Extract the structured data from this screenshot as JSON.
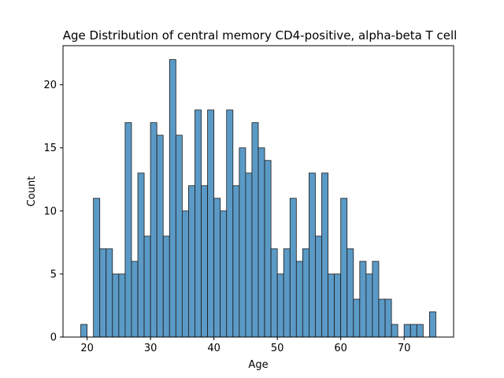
{
  "chart_data": {
    "type": "bar",
    "title": "Age Distribution of central memory CD4-positive, alpha-beta T cell",
    "xlabel": "Age",
    "ylabel": "Count",
    "xlim": [
      16.2,
      77.8
    ],
    "ylim": [
      0,
      23.1
    ],
    "x_ticks": [
      20,
      30,
      40,
      50,
      60,
      70
    ],
    "y_ticks": [
      0,
      5,
      10,
      15,
      20
    ],
    "bin_width": 1,
    "bin_starts": [
      19,
      20,
      21,
      22,
      23,
      24,
      25,
      26,
      27,
      28,
      29,
      30,
      31,
      32,
      33,
      34,
      35,
      36,
      37,
      38,
      39,
      40,
      41,
      42,
      43,
      44,
      45,
      46,
      47,
      48,
      49,
      50,
      51,
      52,
      53,
      54,
      55,
      56,
      57,
      58,
      59,
      60,
      61,
      62,
      63,
      64,
      65,
      66,
      67,
      68,
      69,
      70,
      71,
      72,
      73,
      74,
      75
    ],
    "counts": [
      1,
      0,
      11,
      7,
      7,
      5,
      5,
      17,
      6,
      13,
      8,
      17,
      16,
      8,
      22,
      16,
      10,
      12,
      18,
      12,
      18,
      11,
      10,
      18,
      12,
      15,
      13,
      17,
      15,
      14,
      7,
      5,
      7,
      11,
      6,
      7,
      13,
      8,
      13,
      5,
      5,
      11,
      7,
      3,
      6,
      5,
      6,
      3,
      3,
      1,
      0,
      1,
      1,
      1,
      0,
      2,
      0
    ],
    "bar_color": "#5b9ac6",
    "edge_color": "#1a1a1a",
    "grid": false,
    "legend": "none"
  }
}
